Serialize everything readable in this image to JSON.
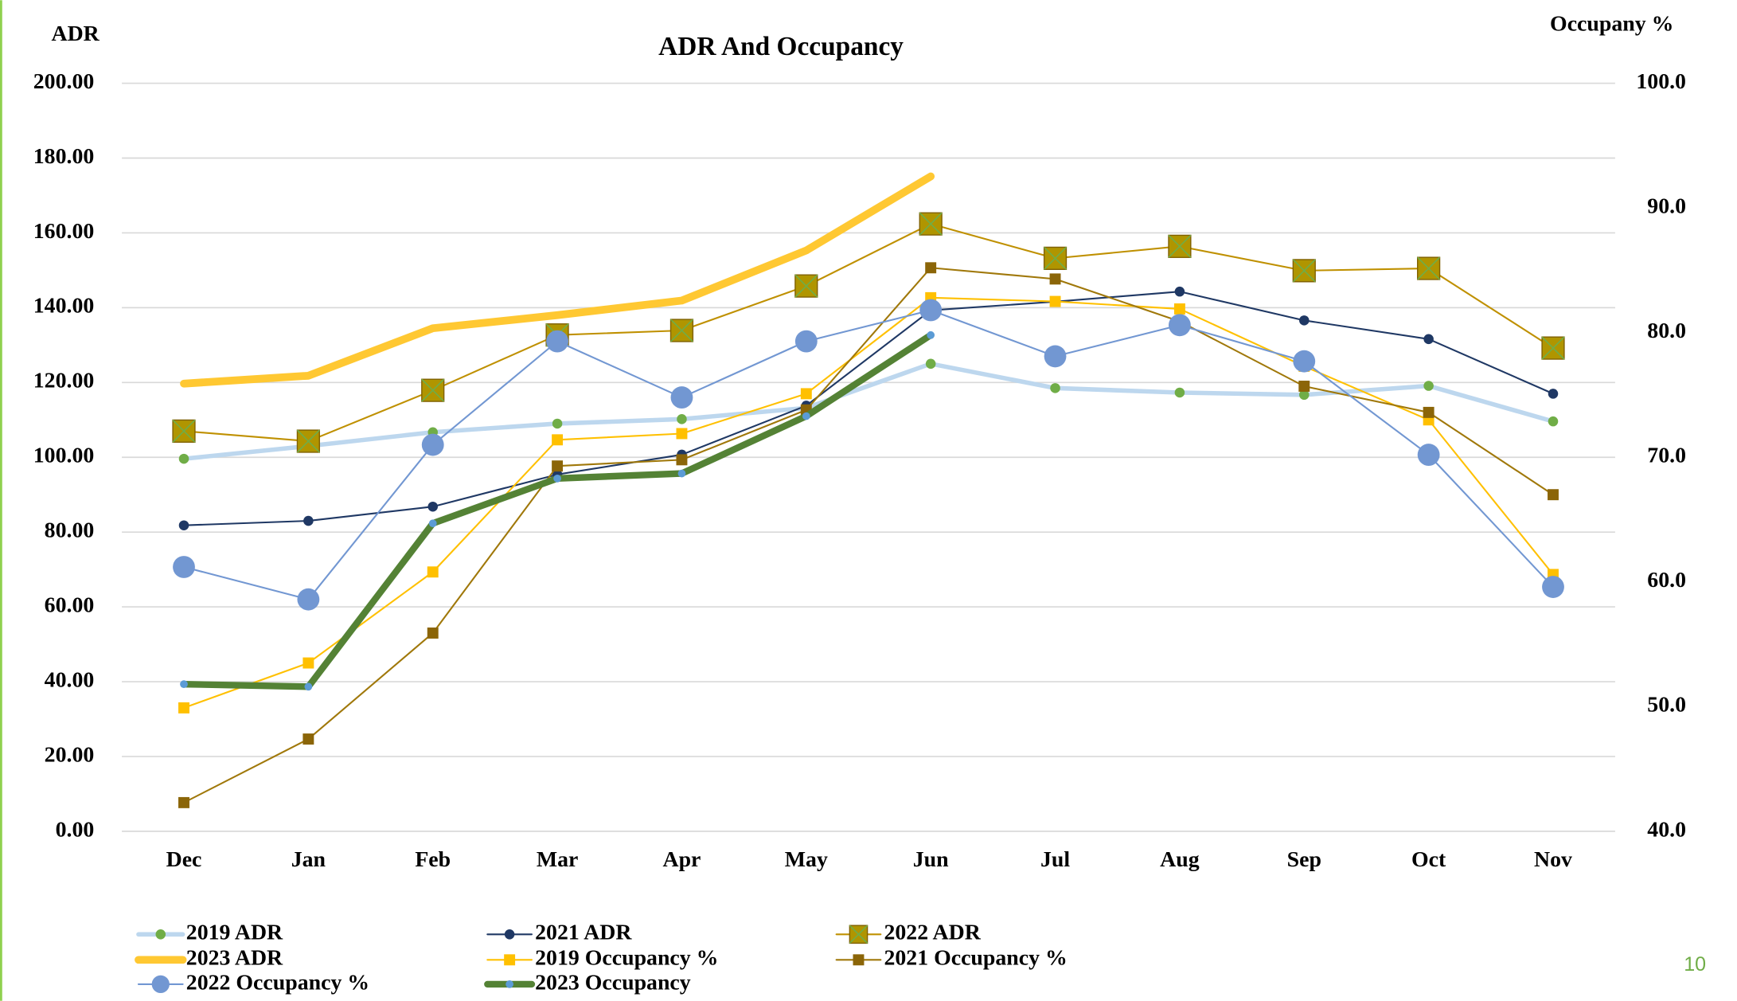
{
  "chart_data": {
    "type": "line",
    "title": "ADR And Occupancy",
    "y_label": "ADR",
    "y2_label": "Occupany %",
    "page_number": "10",
    "categories": [
      "Dec",
      "Jan",
      "Feb",
      "Mar",
      "Apr",
      "May",
      "Jun",
      "Jul",
      "Aug",
      "Sep",
      "Oct",
      "Nov"
    ],
    "ylim": [
      0,
      200
    ],
    "yticks": [
      {
        "value": 0,
        "label": "0.00"
      },
      {
        "value": 20,
        "label": "20.00"
      },
      {
        "value": 40,
        "label": "40.00"
      },
      {
        "value": 60,
        "label": "60.00"
      },
      {
        "value": 80,
        "label": "80.00"
      },
      {
        "value": 100,
        "label": "100.00"
      },
      {
        "value": 120,
        "label": "120.00"
      },
      {
        "value": 140,
        "label": "140.00"
      },
      {
        "value": 160,
        "label": "160.00"
      },
      {
        "value": 180,
        "label": "180.00"
      },
      {
        "value": 200,
        "label": "200.00"
      }
    ],
    "y2lim": [
      40,
      100
    ],
    "y2ticks": [
      {
        "value": 40,
        "label": "40.0"
      },
      {
        "value": 50,
        "label": "50.0"
      },
      {
        "value": 60,
        "label": "60.0"
      },
      {
        "value": 70,
        "label": "70.0"
      },
      {
        "value": 80,
        "label": "80.0"
      },
      {
        "value": 90,
        "label": "90.0"
      },
      {
        "value": 100,
        "label": "100.0"
      }
    ],
    "grid": true,
    "legend": "bottom",
    "series": [
      {
        "name": "2019 ADR",
        "color": "#bdd7ee",
        "marker_color": "#70ad47",
        "marker": "circle",
        "marker_size": 4.5,
        "line_width": 4,
        "values": [
          99.6,
          103,
          106.7,
          109,
          110.2,
          113.2,
          125,
          118.5,
          117.3,
          116.7,
          119.1,
          109.6
        ]
      },
      {
        "name": "2021 ADR",
        "color": "#1f3864",
        "marker_color": "#1f3864",
        "marker": "circle",
        "marker_size": 4.5,
        "line_width": 1.5,
        "values": [
          81.8,
          83,
          86.8,
          95.4,
          100.7,
          113.8,
          139.3,
          141.6,
          144.3,
          136.6,
          131.6,
          117
        ]
      },
      {
        "name": "2022 ADR",
        "color": "#bf9000",
        "marker_color": "#b09500",
        "marker": "square-x",
        "marker_size": 10,
        "line_width": 1.5,
        "values": [
          107,
          104.3,
          117.9,
          132.7,
          133.9,
          145.8,
          162.4,
          153.2,
          156.4,
          149.9,
          150.5,
          129.2
        ]
      },
      {
        "name": "2023 ADR",
        "color": "#ffc832",
        "marker_color": "#ffc832",
        "marker": "none",
        "marker_size": 0,
        "line_width": 7,
        "values": [
          119.7,
          121.8,
          134.5,
          138,
          141.9,
          155.3,
          175.1,
          null,
          null,
          null,
          null,
          null
        ]
      },
      {
        "name": "2019 Occupancy %",
        "color": "#ffc000",
        "marker_color": "#ffc000",
        "marker": "square",
        "marker_size": 5,
        "line_width": 1.5,
        "axis": "y2",
        "values": [
          49.9,
          53.5,
          60.8,
          71.4,
          71.9,
          75.1,
          82.8,
          82.5,
          81.9,
          77.3,
          73,
          60.6
        ]
      },
      {
        "name": "2021 Occupancy %",
        "color": "#a0780a",
        "marker_color": "#8b6508",
        "marker": "square",
        "marker_size": 5,
        "line_width": 1.5,
        "axis": "y2",
        "values": [
          42.3,
          47.4,
          55.9,
          69.3,
          69.8,
          73.8,
          85.2,
          84.3,
          80.9,
          75.7,
          73.6,
          67
        ]
      },
      {
        "name": "2022 Occupancy %",
        "color": "#7297d2",
        "marker_color": "#7297d2",
        "marker": "circle",
        "marker_size": 10,
        "line_width": 1.5,
        "axis": "y2",
        "values": [
          61.2,
          58.6,
          71,
          79.3,
          74.8,
          79.3,
          81.8,
          78.1,
          80.6,
          77.7,
          70.2,
          59.6
        ]
      },
      {
        "name": "2023 Occupancy",
        "color": "#548235",
        "marker_color": "#5b9bd5",
        "marker": "circle",
        "marker_size": 3.5,
        "line_width": 6,
        "axis": "y2",
        "values": [
          51.8,
          51.6,
          64.7,
          68.3,
          68.7,
          73.3,
          79.8,
          null,
          null,
          null,
          null,
          null
        ]
      }
    ]
  }
}
